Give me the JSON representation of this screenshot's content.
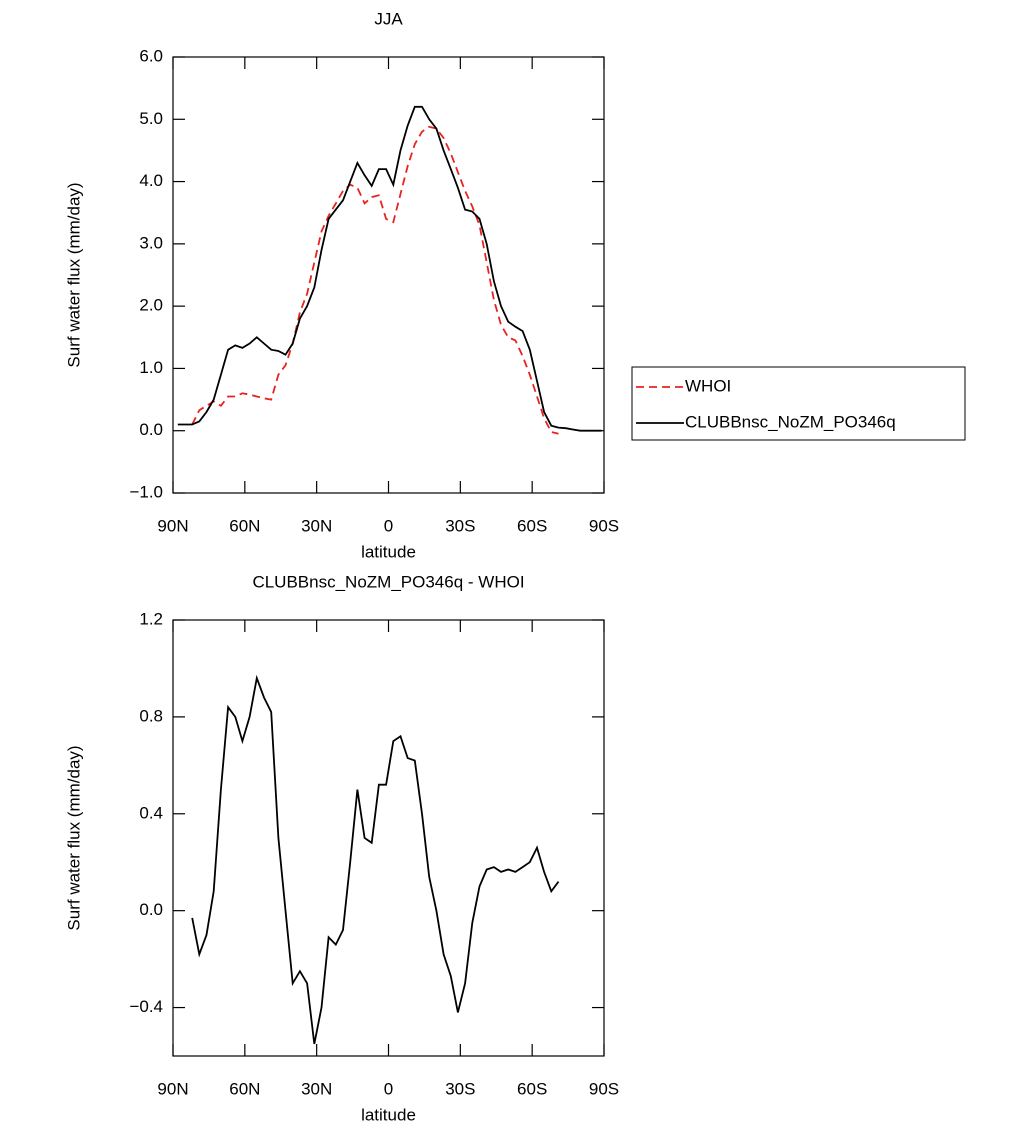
{
  "chart_data": [
    {
      "type": "line",
      "title": "JJA",
      "xlabel": "latitude",
      "ylabel": "Surf water flux (mm/day)",
      "x": [
        88,
        85,
        82,
        79,
        76,
        73,
        70,
        67,
        64,
        61,
        58,
        55,
        52,
        49,
        46,
        43,
        40,
        37,
        34,
        31,
        28,
        25,
        22,
        19,
        16,
        13,
        10,
        7,
        4,
        1,
        -2,
        -5,
        -8,
        -11,
        -14,
        -17,
        -20,
        -23,
        -26,
        -29,
        -32,
        -35,
        -38,
        -41,
        -44,
        -47,
        -50,
        -53,
        -56,
        -59,
        -62,
        -65,
        -68,
        -71,
        -74,
        -77,
        -80,
        -83,
        -86,
        -89
      ],
      "xlim": [
        90,
        -90
      ],
      "xticks": [
        {
          "value": 90,
          "label": "90N"
        },
        {
          "value": 60,
          "label": "60N"
        },
        {
          "value": 30,
          "label": "30N"
        },
        0,
        {
          "value": -30,
          "label": "30S"
        },
        {
          "value": -60,
          "label": "60S"
        },
        {
          "value": -90,
          "label": "90S"
        }
      ],
      "ylim": [
        -1,
        6
      ],
      "yticks": [
        {
          "value": -1,
          "label": "−1.0"
        },
        {
          "value": 0,
          "label": "0.0"
        },
        {
          "value": 1,
          "label": "1.0"
        },
        {
          "value": 2,
          "label": "2.0"
        },
        {
          "value": 3,
          "label": "3.0"
        },
        {
          "value": 4,
          "label": "4.0"
        },
        {
          "value": 5,
          "label": "5.0"
        },
        {
          "value": 6,
          "label": "6.0"
        }
      ],
      "legend": "right",
      "series": [
        {
          "name": "WHOI",
          "color": "#e8231f",
          "dashed": true,
          "values": [
            null,
            null,
            0.1,
            0.33,
            0.4,
            0.47,
            0.4,
            0.55,
            0.55,
            0.6,
            0.58,
            0.55,
            0.52,
            0.5,
            0.9,
            1.05,
            1.4,
            1.9,
            2.2,
            2.7,
            3.2,
            3.45,
            3.65,
            3.85,
            3.95,
            3.9,
            3.65,
            3.75,
            3.78,
            3.4,
            3.35,
            3.8,
            4.25,
            4.6,
            4.8,
            4.88,
            4.85,
            4.7,
            4.45,
            4.15,
            3.85,
            3.6,
            3.3,
            2.7,
            2.1,
            1.7,
            1.5,
            1.45,
            1.2,
            0.9,
            0.55,
            0.2,
            -0.02,
            -0.05,
            null,
            null,
            null,
            null,
            null,
            null
          ]
        },
        {
          "name": "CLUBBnsc_NoZM_PO346q",
          "color": "#000000",
          "dashed": false,
          "values": [
            0.1,
            0.1,
            0.1,
            0.15,
            0.3,
            0.5,
            0.9,
            1.3,
            1.37,
            1.33,
            1.4,
            1.5,
            1.4,
            1.3,
            1.28,
            1.22,
            1.4,
            1.8,
            2.0,
            2.3,
            2.9,
            3.4,
            3.55,
            3.7,
            4.0,
            4.3,
            4.1,
            3.93,
            4.2,
            4.2,
            3.95,
            4.5,
            4.9,
            5.2,
            5.2,
            5.0,
            4.85,
            4.5,
            4.2,
            3.9,
            3.55,
            3.52,
            3.4,
            3.0,
            2.4,
            2.0,
            1.75,
            1.67,
            1.6,
            1.3,
            0.8,
            0.3,
            0.08,
            0.05,
            0.04,
            0.02,
            0.0,
            0.0,
            0.0,
            0.0
          ]
        }
      ]
    },
    {
      "type": "line",
      "title": "CLUBBnsc_NoZM_PO346q - WHOI",
      "xlabel": "latitude",
      "ylabel": "Surf water flux (mm/day)",
      "x": [
        82,
        79,
        76,
        73,
        70,
        67,
        64,
        61,
        58,
        55,
        52,
        49,
        46,
        43,
        40,
        37,
        34,
        31,
        28,
        25,
        22,
        19,
        16,
        13,
        10,
        7,
        4,
        1,
        -2,
        -5,
        -8,
        -11,
        -14,
        -17,
        -20,
        -23,
        -26,
        -29,
        -32,
        -35,
        -38,
        -41,
        -44,
        -47,
        -50,
        -53,
        -56,
        -59,
        -62,
        -65,
        -68,
        -71
      ],
      "xlim": [
        90,
        -90
      ],
      "xticks": [
        {
          "value": 90,
          "label": "90N"
        },
        {
          "value": 60,
          "label": "60N"
        },
        {
          "value": 30,
          "label": "30N"
        },
        0,
        {
          "value": -30,
          "label": "30S"
        },
        {
          "value": -60,
          "label": "60S"
        },
        {
          "value": -90,
          "label": "90S"
        }
      ],
      "ylim": [
        -0.6,
        1.2
      ],
      "yticks": [
        {
          "value": -0.4,
          "label": "−0.4"
        },
        {
          "value": 0,
          "label": "0.0"
        },
        0.4,
        0.8,
        1.2
      ],
      "color": "#000000",
      "values": [
        -0.03,
        -0.18,
        -0.1,
        0.08,
        0.5,
        0.84,
        0.8,
        0.7,
        0.8,
        0.96,
        0.88,
        0.82,
        0.3,
        0.0,
        -0.3,
        -0.25,
        -0.3,
        -0.55,
        -0.4,
        -0.11,
        -0.14,
        -0.08,
        0.2,
        0.5,
        0.3,
        0.28,
        0.52,
        0.52,
        0.7,
        0.72,
        0.63,
        0.62,
        0.4,
        0.14,
        0.0,
        -0.18,
        -0.27,
        -0.42,
        -0.3,
        -0.05,
        0.1,
        0.17,
        0.18,
        0.16,
        0.17,
        0.16,
        0.18,
        0.2,
        0.26,
        0.16,
        0.08,
        0.12
      ]
    }
  ]
}
